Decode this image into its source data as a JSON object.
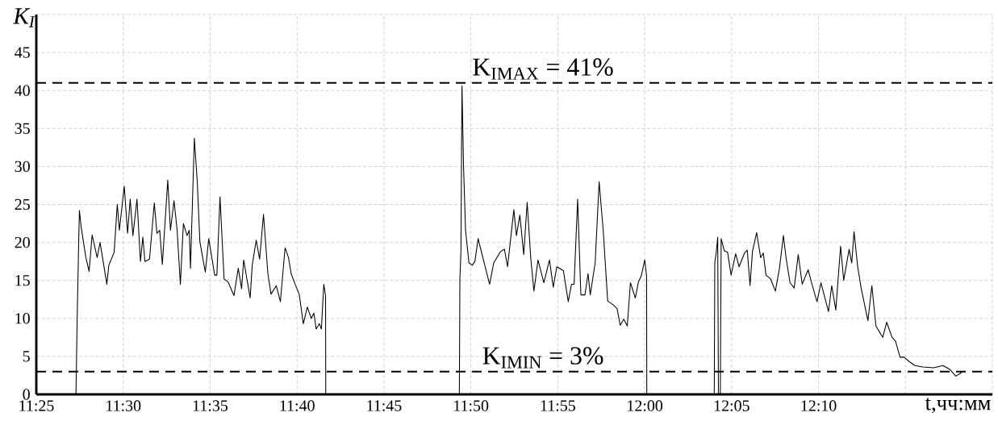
{
  "chart_data": {
    "type": "line",
    "ylabel": "K$_{I}$",
    "xlabel": "t,чч:мм",
    "xlim": [
      11.41667,
      12.33333
    ],
    "ylim": [
      0,
      50
    ],
    "xticks": [
      {
        "value": 11.41667,
        "label": "11:25"
      },
      {
        "value": 11.5,
        "label": "11:30"
      },
      {
        "value": 11.58333,
        "label": "11:35"
      },
      {
        "value": 11.66667,
        "label": "11:40"
      },
      {
        "value": 11.75,
        "label": "11:45"
      },
      {
        "value": 11.83333,
        "label": "11:50"
      },
      {
        "value": 11.91667,
        "label": "11:55"
      },
      {
        "value": 12.0,
        "label": "12:00"
      },
      {
        "value": 12.08333,
        "label": "12:05"
      },
      {
        "value": 12.16667,
        "label": "12:10"
      },
      {
        "value": 12.25,
        "label": null
      },
      {
        "value": 12.33333,
        "label": null
      }
    ],
    "yticks": [
      0,
      5,
      10,
      15,
      20,
      25,
      30,
      35,
      40,
      45,
      {
        "value": 50,
        "label": null
      }
    ],
    "grid": true,
    "line_style": "solid",
    "ref_lines": [
      {
        "axis": "y",
        "value": 41,
        "label": "K$_{IMAX}$ = 41%",
        "color": "#000000",
        "line_style": "dashed"
      },
      {
        "axis": "y",
        "value": 3,
        "label": "K$_{IMIN}$ = 3%",
        "color": "#000000",
        "line_style": "dashed"
      }
    ],
    "series": [
      {
        "color": "#000000",
        "x": [
          11.4547,
          11.4558,
          11.4573,
          11.458,
          11.4598,
          11.4642,
          11.4673,
          11.4702,
          11.475,
          11.4778,
          11.4843,
          11.4862,
          11.4913,
          11.4943,
          11.4963,
          11.501,
          11.5042,
          11.5067,
          11.5093,
          11.5132,
          11.5165,
          11.5188,
          11.5208,
          11.5252,
          11.5298,
          11.5323,
          11.535,
          11.5375,
          11.5427,
          11.5453,
          11.5487,
          11.5517,
          11.5548,
          11.5577,
          11.5612,
          11.5633,
          11.5645,
          11.5682,
          11.571,
          11.5735,
          11.5762,
          11.5787,
          11.582,
          11.5877,
          11.5898,
          11.5928,
          11.5967,
          11.6005,
          11.6062,
          11.6103,
          11.6135,
          11.6155,
          11.6217,
          11.6237,
          11.6275,
          11.6308,
          11.6345,
          11.6387,
          11.6417,
          11.6468,
          11.6507,
          11.6552,
          11.6585,
          11.661,
          11.6648,
          11.6687,
          11.6727,
          11.6765,
          11.6803,
          11.6828,
          11.685,
          11.688,
          11.69,
          11.6923,
          11.694,
          11.6942,
          11.76,
          11.8223,
          11.8228,
          11.8238,
          11.8248,
          11.8263,
          11.8282,
          11.8315,
          11.8347,
          11.8372,
          11.8403,
          11.8448,
          11.8513,
          11.8552,
          11.8617,
          11.8655,
          11.8685,
          11.8718,
          11.8745,
          11.877,
          11.8803,
          11.884,
          11.8873,
          11.8907,
          11.8938,
          11.8977,
          11.9033,
          11.9087,
          11.9123,
          11.9157,
          11.922,
          11.9267,
          11.9298,
          11.9323,
          11.9357,
          11.9388,
          11.9427,
          11.9457,
          11.9478,
          11.9525,
          11.9563,
          11.9602,
          11.9645,
          11.9697,
          11.9735,
          11.9765,
          11.98,
          11.9833,
          11.9863,
          11.991,
          11.994,
          11.9967,
          12.0,
          12.0018,
          12.002,
          12.03,
          12.0667,
          12.0672,
          12.0687,
          12.07,
          12.0707,
          12.0725,
          12.0733,
          12.0763,
          12.0795,
          12.0828,
          12.0872,
          12.0905,
          12.0957,
          12.0983,
          12.101,
          12.1033,
          12.1073,
          12.1112,
          12.1137,
          12.1163,
          12.1207,
          12.1253,
          12.1292,
          12.133,
          12.1355,
          12.1393,
          12.1433,
          12.1472,
          12.151,
          12.1567,
          12.16,
          12.1652,
          12.169,
          12.1762,
          12.1793,
          12.1832,
          12.1878,
          12.1908,
          12.196,
          12.1985,
          12.2007,
          12.2042,
          12.2075,
          12.214,
          12.2178,
          12.2217,
          12.2282,
          12.232,
          12.2372,
          12.2405,
          12.2448,
          12.2487,
          12.2538,
          12.259,
          12.2667,
          12.277,
          12.286,
          12.2925,
          12.2983,
          12.304
        ],
        "values": [
          0,
          9.5,
          20.1,
          24.2,
          21.9,
          18,
          16.2,
          21,
          18,
          20,
          14.5,
          17,
          18.7,
          25,
          21.6,
          27.4,
          21.2,
          25.7,
          20.9,
          25.7,
          17.5,
          20.7,
          17.5,
          17.8,
          25.2,
          21.2,
          21.6,
          17.1,
          28.2,
          21.6,
          25.5,
          21.6,
          14.5,
          22.5,
          20.9,
          21.6,
          16.6,
          33.7,
          28,
          20.1,
          18,
          16.1,
          20.5,
          15.7,
          15.7,
          26,
          15.2,
          14.8,
          13,
          16.6,
          13.9,
          17.7,
          12.7,
          17,
          20.3,
          17.8,
          23.7,
          15.9,
          13.2,
          14.3,
          12.2,
          19.3,
          18,
          15.9,
          14.5,
          13.2,
          9.3,
          11.5,
          10,
          10.7,
          8.6,
          9.3,
          8.6,
          14.5,
          13,
          0,
          null,
          0,
          15.2,
          18.8,
          40.6,
          30.1,
          21.6,
          17.3,
          17,
          17.5,
          20.5,
          18,
          14.5,
          17.3,
          18.8,
          19.1,
          16.8,
          20.9,
          24.3,
          20.9,
          23.6,
          18.4,
          25.3,
          18,
          13.6,
          17.7,
          14.7,
          17.7,
          14.1,
          16.8,
          16.3,
          12.2,
          14.5,
          14.5,
          25.7,
          13.1,
          13.1,
          15.9,
          13.1,
          17.3,
          28,
          21.6,
          12.3,
          11.8,
          11.3,
          9.1,
          9.9,
          9,
          14.7,
          12.7,
          14.8,
          15.6,
          17.7,
          15.6,
          0,
          null,
          0,
          17.3,
          18.8,
          20.7,
          0,
          0,
          20.5,
          18.9,
          18.7,
          15.7,
          18.5,
          16.8,
          18.6,
          19,
          14.3,
          18.8,
          21.3,
          18,
          18.6,
          15.7,
          15.2,
          13.6,
          16.6,
          20.9,
          18,
          14.7,
          14,
          18.4,
          14.5,
          16.4,
          14.7,
          12.2,
          14.7,
          10.9,
          14.3,
          11.1,
          19.5,
          15,
          19.1,
          17.3,
          21.4,
          16.8,
          14,
          9.7,
          14.3,
          9,
          7.5,
          9.5,
          7.5,
          7,
          4.9,
          4.9,
          4.3,
          3.8,
          3.6,
          3.5,
          3.8,
          3.3,
          2.4,
          2.9
        ]
      }
    ]
  }
}
